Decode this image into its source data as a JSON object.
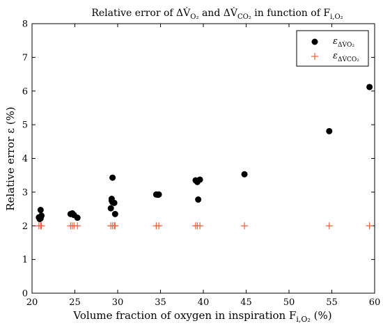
{
  "chart_data": {
    "type": "scatter",
    "title": "Relative error of ΔV̇O₂ and ΔV̇CO₂ in function of Fi,O₂",
    "title_parts": {
      "prefix": "Relative error of ",
      "delta_v1": "ΔV̇",
      "sub1": "O₂",
      "and": " and ",
      "delta_v2": "ΔV̇",
      "sub2": "CO₂",
      "suffix": " in function of F",
      "sub3": "i,O₂"
    },
    "xlabel": "Volume fraction of oxygen in inspiration Fi,O₂ (%)",
    "xlabel_parts": {
      "main": "Volume fraction of oxygen in inspiration F",
      "sub": "i,O₂",
      "unit": " (%)"
    },
    "ylabel": "Relative error ε (%)",
    "xlim": [
      20,
      60
    ],
    "ylim": [
      0,
      8
    ],
    "xticks": [
      "20",
      "25",
      "30",
      "35",
      "40",
      "45",
      "50",
      "55",
      "60"
    ],
    "yticks": [
      "0",
      "1",
      "2",
      "3",
      "4",
      "5",
      "6",
      "7",
      "8"
    ],
    "grid": false,
    "legend_position": "top-right",
    "series": [
      {
        "name": "ε ΔV̇O₂",
        "name_parts": {
          "symbol": "ε",
          "sub": "ΔV̇O₂"
        },
        "marker": "filled-circle",
        "color": "#000000",
        "points": [
          [
            20.9,
            2.2
          ],
          [
            21.0,
            2.47
          ],
          [
            21.1,
            2.3
          ],
          [
            20.8,
            2.25
          ],
          [
            21.0,
            2.22
          ],
          [
            24.5,
            2.35
          ],
          [
            24.7,
            2.37
          ],
          [
            24.9,
            2.32
          ],
          [
            25.3,
            2.24
          ],
          [
            29.2,
            2.52
          ],
          [
            29.3,
            2.75
          ],
          [
            29.4,
            2.7
          ],
          [
            29.3,
            2.8
          ],
          [
            29.4,
            3.43
          ],
          [
            29.6,
            2.68
          ],
          [
            29.7,
            2.35
          ],
          [
            34.5,
            2.93
          ],
          [
            34.8,
            2.93
          ],
          [
            34.7,
            2.92
          ],
          [
            39.1,
            3.35
          ],
          [
            39.3,
            3.3
          ],
          [
            39.6,
            3.37
          ],
          [
            39.4,
            2.78
          ],
          [
            44.8,
            3.53
          ],
          [
            54.7,
            4.81
          ],
          [
            59.4,
            6.12
          ]
        ]
      },
      {
        "name": "ε ΔV̇CO₂",
        "name_parts": {
          "symbol": "ε",
          "sub": "ΔV̇CO₂"
        },
        "marker": "plus",
        "color": "#E8623A",
        "points": [
          [
            20.8,
            2.0
          ],
          [
            21.0,
            2.0
          ],
          [
            21.1,
            2.0
          ],
          [
            24.5,
            2.0
          ],
          [
            24.7,
            2.0
          ],
          [
            24.9,
            2.0
          ],
          [
            25.3,
            2.0
          ],
          [
            29.2,
            2.0
          ],
          [
            29.4,
            2.0
          ],
          [
            29.6,
            2.0
          ],
          [
            29.7,
            2.0
          ],
          [
            34.5,
            2.0
          ],
          [
            34.8,
            2.0
          ],
          [
            39.1,
            2.0
          ],
          [
            39.3,
            2.0
          ],
          [
            39.6,
            2.0
          ],
          [
            44.8,
            2.0
          ],
          [
            54.7,
            2.0
          ],
          [
            59.4,
            2.0
          ]
        ]
      }
    ]
  }
}
